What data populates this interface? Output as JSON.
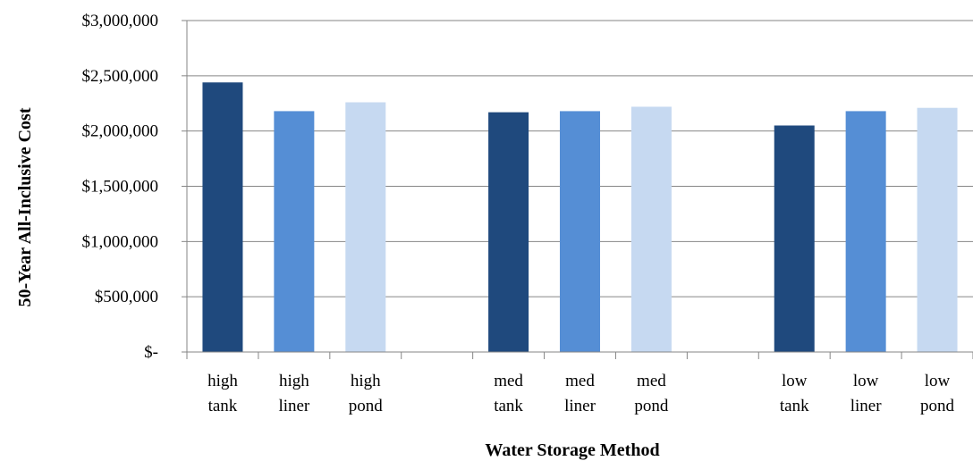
{
  "chart_data": {
    "type": "bar",
    "title": "",
    "xlabel": "Water Storage Method",
    "ylabel": "50-Year All-Inclusive Cost",
    "ylim": [
      0,
      3000000
    ],
    "yticks": [
      0,
      500000,
      1000000,
      1500000,
      2000000,
      2500000,
      3000000
    ],
    "ytick_labels": [
      "$-",
      "$500,000",
      "$1,000,000",
      "$1,500,000",
      "$2,000,000",
      "$2,500,000",
      "$3,000,000"
    ],
    "grid": "horizontal",
    "categories": [
      [
        "high",
        "tank"
      ],
      [
        "high",
        "liner"
      ],
      [
        "high",
        "pond"
      ],
      [
        "",
        ""
      ],
      [
        "med",
        "tank"
      ],
      [
        "med",
        "liner"
      ],
      [
        "med",
        "pond"
      ],
      [
        "",
        ""
      ],
      [
        "low",
        "tank"
      ],
      [
        "low",
        "liner"
      ],
      [
        "low",
        "pond"
      ]
    ],
    "values": [
      2440000,
      2180000,
      2260000,
      null,
      2170000,
      2180000,
      2220000,
      null,
      2050000,
      2180000,
      2210000
    ],
    "bar_colors": [
      "#1f497d",
      "#558ed5",
      "#c6d9f1",
      null,
      "#1f497d",
      "#558ed5",
      "#c6d9f1",
      null,
      "#1f497d",
      "#558ed5",
      "#c6d9f1"
    ]
  }
}
